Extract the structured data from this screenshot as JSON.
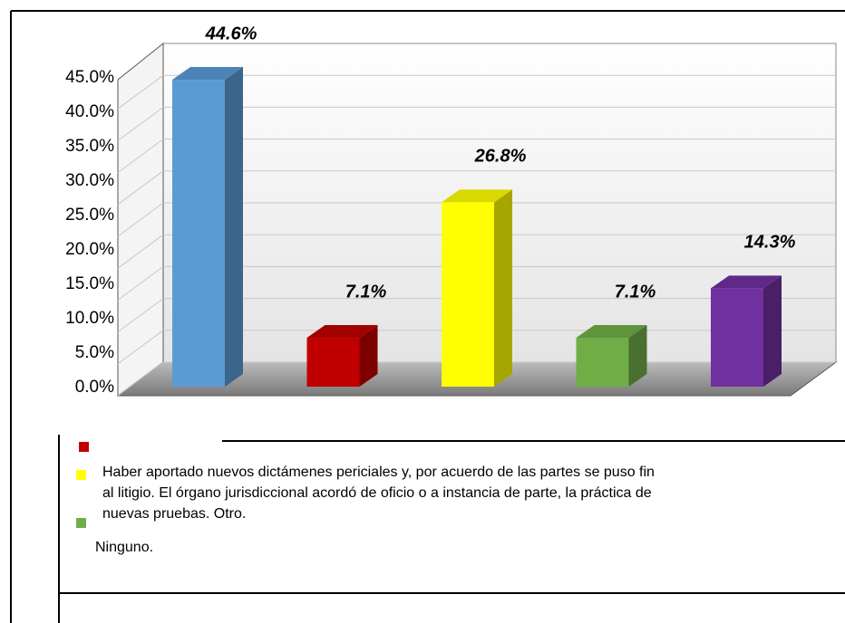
{
  "chart_data": {
    "type": "bar3d",
    "categories": [
      null,
      null,
      null,
      null,
      null
    ],
    "values": [
      44.6,
      7.1,
      26.8,
      7.1,
      14.3
    ],
    "value_labels": [
      "44.6%",
      "7.1%",
      "26.8%",
      "7.1%",
      "14.3%"
    ],
    "colors": [
      "#5b9bd5",
      "#c00000",
      "#ffff00",
      "#70ad47",
      "#7030a0"
    ],
    "ylim": [
      0,
      50
    ],
    "yticks": [
      {
        "value": 0,
        "label": "0.0%"
      },
      {
        "value": 5,
        "label": "5.0%"
      },
      {
        "value": 10,
        "label": "10.0%"
      },
      {
        "value": 15,
        "label": "15.0%"
      },
      {
        "value": 20,
        "label": "20.0%"
      },
      {
        "value": 25,
        "label": "25.0%"
      },
      {
        "value": 30,
        "label": "30.0%"
      },
      {
        "value": 35,
        "label": "35.0%"
      },
      {
        "value": 40,
        "label": "40.0%"
      },
      {
        "value": 45,
        "label": "45.0%"
      }
    ],
    "grid": true,
    "legend_lines": [
      "Haber aportado nuevos dictámenes periciales y, por acuerdo de las partes se puso fin",
      "al litigio. El órgano jurisdiccional acordó de oficio o a instancia de parte, la práctica de",
      "nuevas pruebas. Otro.",
      "Ninguno."
    ]
  }
}
